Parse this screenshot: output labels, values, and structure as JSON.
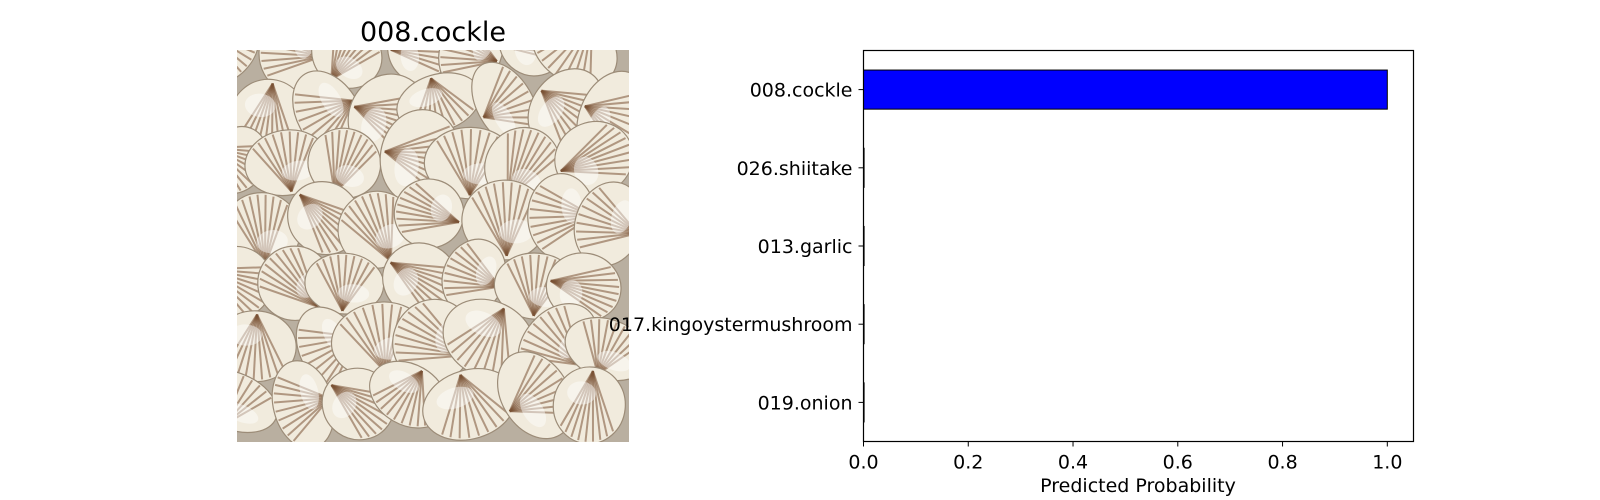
{
  "image_panel": {
    "title": "008.cockle",
    "subject": "cockles"
  },
  "colors": {
    "bar_fill": "#0000ff",
    "bar_edge": "#000000",
    "axes": "#000000",
    "background": "#ffffff",
    "shell_light": "#f1ebdd",
    "shell_stripe": "#7a5234"
  },
  "chart_data": {
    "type": "bar",
    "orientation": "horizontal",
    "title": "",
    "xlabel": "Predicted Probability",
    "ylabel": "",
    "xlim": [
      0.0,
      1.05
    ],
    "xticks": [
      0.0,
      0.2,
      0.4,
      0.6,
      0.8,
      1.0
    ],
    "xtick_labels": [
      "0.0",
      "0.2",
      "0.4",
      "0.6",
      "0.8",
      "1.0"
    ],
    "grid": false,
    "categories": [
      "008.cockle",
      "026.shiitake",
      "013.garlic",
      "017.kingoystermushroom",
      "019.onion"
    ],
    "values": [
      1.0,
      0.001,
      0.0005,
      0.0004,
      0.0003
    ]
  }
}
